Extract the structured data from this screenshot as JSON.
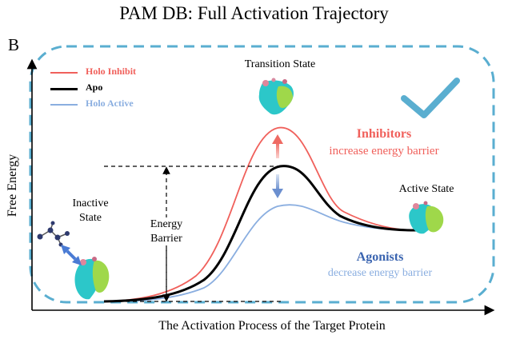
{
  "title": "PAM DB:  Full Activation Trajectory",
  "panel_letter": "B",
  "axes": {
    "y_label": "Free Energy",
    "x_label": "The Activation Process of the Target Protein"
  },
  "legend": [
    {
      "label": "Holo Inhibit",
      "color": "#f0605b"
    },
    {
      "label": "Apo",
      "color": "#000000"
    },
    {
      "label": "Holo Active",
      "color": "#8aaee0"
    }
  ],
  "states": {
    "inactive": "Inactive\nState",
    "transition": "Transition State",
    "active": "Active State"
  },
  "energy_barrier": "Energy\nBarrier",
  "inhibitors": {
    "title": "Inhibitors",
    "subtitle": "increase energy barrier"
  },
  "agonists": {
    "title": "Agonists",
    "subtitle": "decrease energy barrier"
  },
  "colors": {
    "frame": "#5aaed0",
    "check": "#5aaed0",
    "inhibit": "#f0605b",
    "apo": "#000000",
    "active": "#8aaee0",
    "agonist_title": "#3a64b0"
  },
  "icons": [
    "protein-structure-icon",
    "ligand-molecule-icon",
    "checkmark-icon"
  ]
}
